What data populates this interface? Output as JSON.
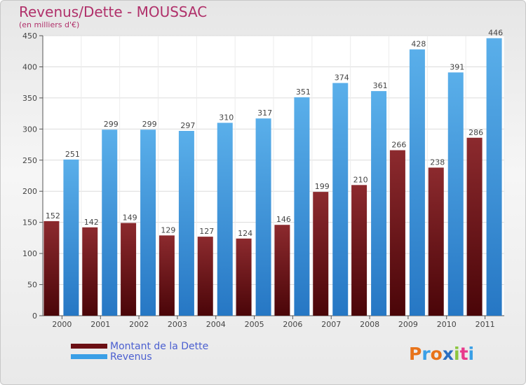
{
  "title": "Revenus/Dette - MOUSSAC",
  "subtitle": "(en milliers d'€)",
  "logo_text": "Proxiti",
  "colors": {
    "debt": "#7a1f24",
    "revenue": "#3aa0e6",
    "title": "#b0306a",
    "legend_text": "#4b5fd0"
  },
  "legend": [
    {
      "label": "Montant de la Dette",
      "color": "#6b0f14"
    },
    {
      "label": "Revenus",
      "color": "#3a9fe6"
    }
  ],
  "chart_data": {
    "type": "bar",
    "title": "Revenus/Dette - MOUSSAC",
    "subtitle": "(en milliers d'€)",
    "categories": [
      "2000",
      "2001",
      "2002",
      "2003",
      "2004",
      "2005",
      "2006",
      "2007",
      "2008",
      "2009",
      "2010",
      "2011"
    ],
    "series": [
      {
        "name": "Montant de la Dette",
        "values": [
          152,
          142,
          149,
          129,
          127,
          124,
          146,
          199,
          210,
          266,
          238,
          286
        ]
      },
      {
        "name": "Revenus",
        "values": [
          251,
          299,
          299,
          297,
          310,
          317,
          351,
          374,
          361,
          428,
          391,
          446
        ]
      }
    ],
    "ylim": [
      0,
      450
    ],
    "yticks": [
      0,
      50,
      100,
      150,
      200,
      250,
      300,
      350,
      400,
      450
    ],
    "grid": true,
    "legend_position": "bottom-left"
  }
}
